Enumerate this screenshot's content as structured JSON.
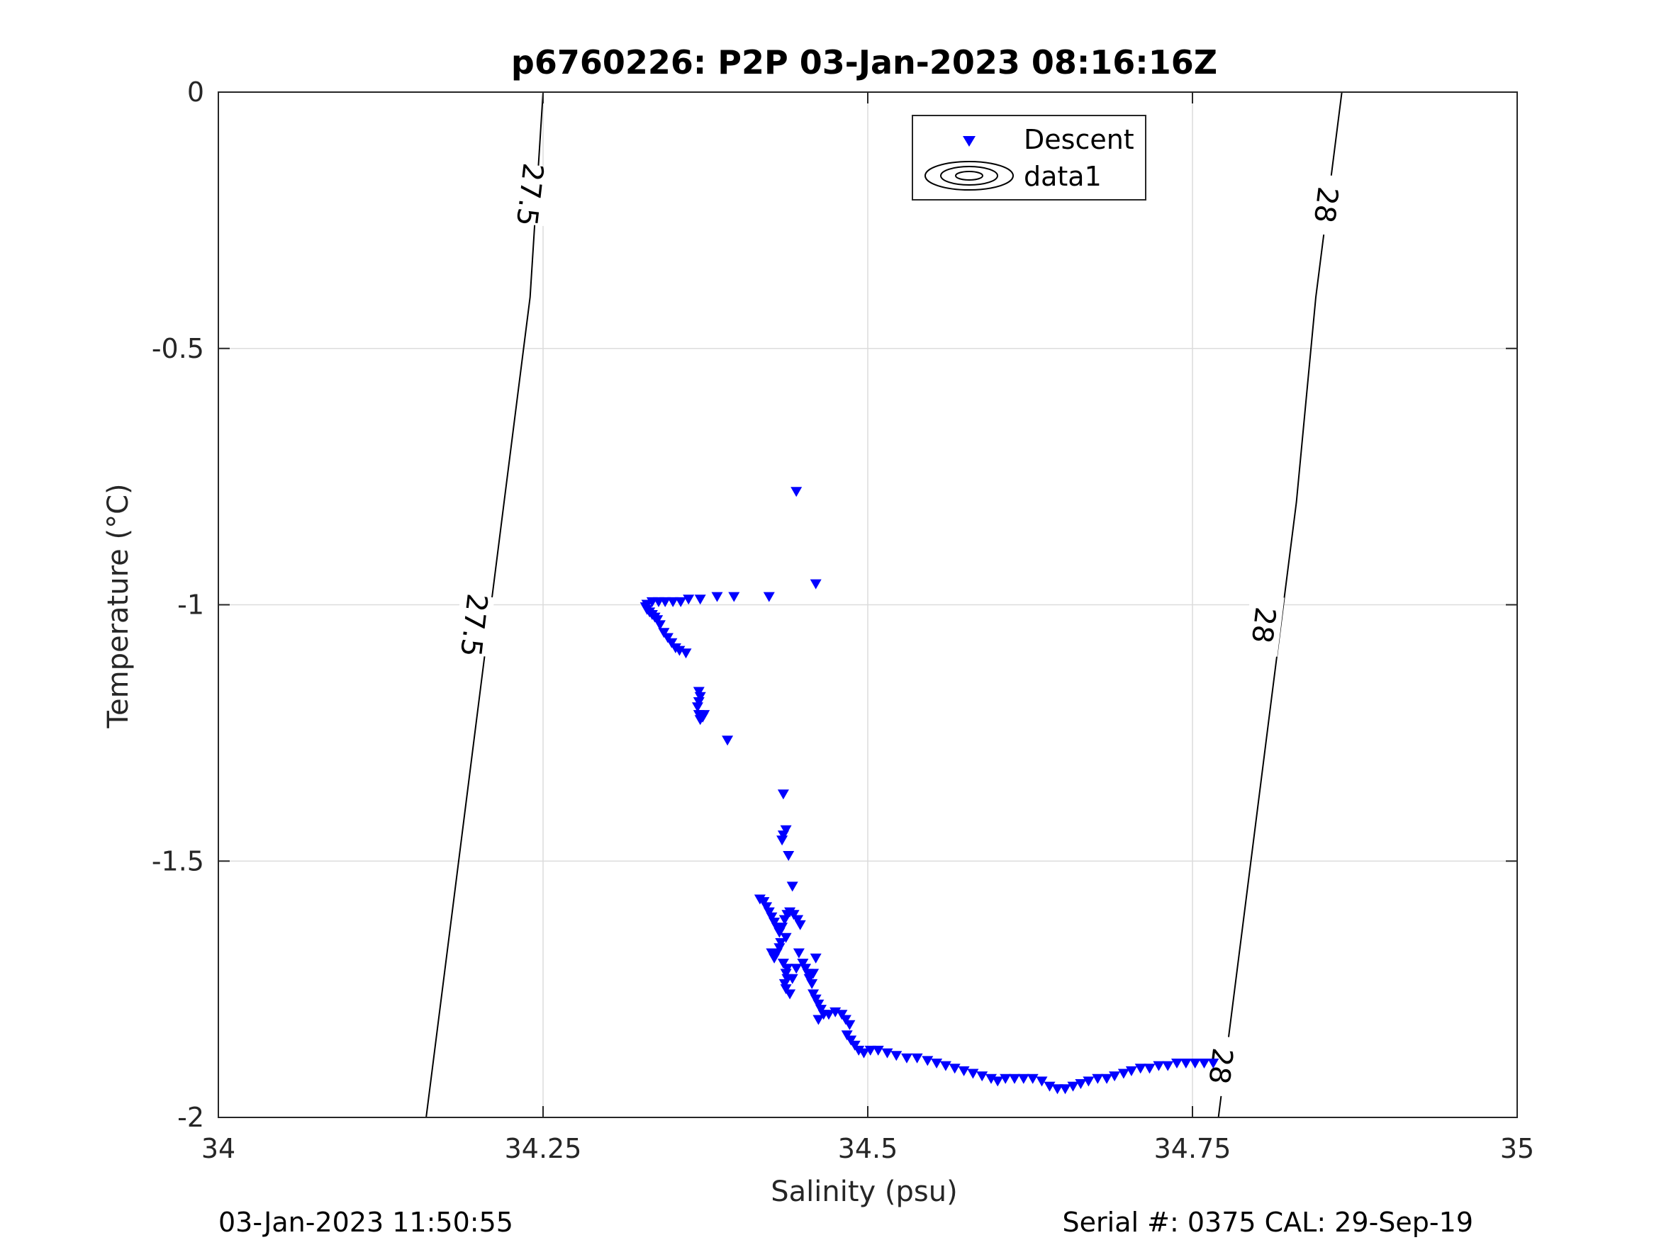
{
  "chart_data": {
    "type": "scatter",
    "title": "p6760226: P2P 03-Jan-2023 08:16:16Z",
    "xlabel": "Salinity (psu)",
    "ylabel": "Temperature (°C)",
    "xlim": [
      34,
      35
    ],
    "ylim": [
      -2,
      0
    ],
    "x_ticks": [
      {
        "value": 34,
        "label": "34"
      },
      {
        "value": 34.25,
        "label": "34.25"
      },
      {
        "value": 34.5,
        "label": "34.5"
      },
      {
        "value": 34.75,
        "label": "34.75"
      },
      {
        "value": 35,
        "label": "35"
      }
    ],
    "y_ticks": [
      {
        "value": 0,
        "label": "0"
      },
      {
        "value": -0.5,
        "label": "-0.5"
      },
      {
        "value": -1,
        "label": "-1"
      },
      {
        "value": -1.5,
        "label": "-1.5"
      },
      {
        "value": -2,
        "label": "-2"
      }
    ],
    "grid": true,
    "legend": {
      "placement": "top-center",
      "entries": [
        {
          "label": "Descent",
          "marker": "triangle-down",
          "color": "#0000ff"
        },
        {
          "label": "data1",
          "marker": "contour",
          "color": "#000000"
        }
      ]
    },
    "contours": [
      {
        "level": "27.5",
        "points": [
          [
            34.16,
            -2
          ],
          [
            34.18,
            -1.6
          ],
          [
            34.2,
            -1.2
          ],
          [
            34.22,
            -0.8
          ],
          [
            34.24,
            -0.4
          ],
          [
            34.25,
            0
          ]
        ],
        "labels": [
          {
            "x": 34.197,
            "y": -1.04
          },
          {
            "x": 34.24,
            "y": -0.2
          }
        ]
      },
      {
        "level": "28",
        "points": [
          [
            34.77,
            -2
          ],
          [
            34.79,
            -1.6
          ],
          [
            34.81,
            -1.2
          ],
          [
            34.83,
            -0.8
          ],
          [
            34.845,
            -0.4
          ],
          [
            34.865,
            0
          ]
        ],
        "labels": [
          {
            "x": 34.772,
            "y": -1.9
          },
          {
            "x": 34.805,
            "y": -1.04
          },
          {
            "x": 34.853,
            "y": -0.22
          }
        ]
      }
    ],
    "series": [
      {
        "name": "Descent",
        "marker": "triangle-down",
        "color": "#0000ff",
        "points": [
          [
            34.445,
            -0.78
          ],
          [
            34.46,
            -0.96
          ],
          [
            34.424,
            -0.985
          ],
          [
            34.397,
            -0.985
          ],
          [
            34.384,
            -0.985
          ],
          [
            34.371,
            -0.99
          ],
          [
            34.362,
            -0.99
          ],
          [
            34.356,
            -0.995
          ],
          [
            34.35,
            -0.995
          ],
          [
            34.344,
            -0.995
          ],
          [
            34.339,
            -0.995
          ],
          [
            34.334,
            -0.995
          ],
          [
            34.33,
            -1.0
          ],
          [
            34.329,
            -1.005
          ],
          [
            34.33,
            -1.01
          ],
          [
            34.332,
            -1.015
          ],
          [
            34.334,
            -1.02
          ],
          [
            34.336,
            -1.025
          ],
          [
            34.338,
            -1.03
          ],
          [
            34.34,
            -1.04
          ],
          [
            34.343,
            -1.055
          ],
          [
            34.346,
            -1.065
          ],
          [
            34.349,
            -1.075
          ],
          [
            34.352,
            -1.085
          ],
          [
            34.355,
            -1.09
          ],
          [
            34.36,
            -1.095
          ],
          [
            34.37,
            -1.17
          ],
          [
            34.371,
            -1.18
          ],
          [
            34.37,
            -1.19
          ],
          [
            34.369,
            -1.2
          ],
          [
            34.37,
            -1.215
          ],
          [
            34.371,
            -1.225
          ],
          [
            34.373,
            -1.22
          ],
          [
            34.374,
            -1.215
          ],
          [
            34.392,
            -1.265
          ],
          [
            34.435,
            -1.37
          ],
          [
            34.437,
            -1.44
          ],
          [
            34.435,
            -1.45
          ],
          [
            34.434,
            -1.46
          ],
          [
            34.439,
            -1.49
          ],
          [
            34.442,
            -1.55
          ],
          [
            34.417,
            -1.575
          ],
          [
            34.42,
            -1.58
          ],
          [
            34.422,
            -1.59
          ],
          [
            34.424,
            -1.6
          ],
          [
            34.426,
            -1.61
          ],
          [
            34.428,
            -1.62
          ],
          [
            34.43,
            -1.63
          ],
          [
            34.432,
            -1.64
          ],
          [
            34.434,
            -1.63
          ],
          [
            34.436,
            -1.615
          ],
          [
            34.438,
            -1.605
          ],
          [
            34.44,
            -1.6
          ],
          [
            34.443,
            -1.605
          ],
          [
            34.446,
            -1.615
          ],
          [
            34.448,
            -1.625
          ],
          [
            34.437,
            -1.65
          ],
          [
            34.433,
            -1.66
          ],
          [
            34.432,
            -1.67
          ],
          [
            34.43,
            -1.68
          ],
          [
            34.428,
            -1.69
          ],
          [
            34.426,
            -1.68
          ],
          [
            34.435,
            -1.7
          ],
          [
            34.438,
            -1.71
          ],
          [
            34.437,
            -1.72
          ],
          [
            34.438,
            -1.73
          ],
          [
            34.436,
            -1.74
          ],
          [
            34.437,
            -1.75
          ],
          [
            34.44,
            -1.76
          ],
          [
            34.442,
            -1.73
          ],
          [
            34.445,
            -1.71
          ],
          [
            34.447,
            -1.68
          ],
          [
            34.45,
            -1.7
          ],
          [
            34.452,
            -1.71
          ],
          [
            34.454,
            -1.72
          ],
          [
            34.455,
            -1.73
          ],
          [
            34.457,
            -1.74
          ],
          [
            34.458,
            -1.72
          ],
          [
            34.46,
            -1.69
          ],
          [
            34.458,
            -1.76
          ],
          [
            34.46,
            -1.77
          ],
          [
            34.462,
            -1.78
          ],
          [
            34.464,
            -1.79
          ],
          [
            34.466,
            -1.8
          ],
          [
            34.462,
            -1.81
          ],
          [
            34.47,
            -1.8
          ],
          [
            34.475,
            -1.795
          ],
          [
            34.48,
            -1.8
          ],
          [
            34.483,
            -1.81
          ],
          [
            34.486,
            -1.82
          ],
          [
            34.484,
            -1.84
          ],
          [
            34.487,
            -1.85
          ],
          [
            34.49,
            -1.86
          ],
          [
            34.493,
            -1.87
          ],
          [
            34.497,
            -1.875
          ],
          [
            34.502,
            -1.87
          ],
          [
            34.508,
            -1.87
          ],
          [
            34.515,
            -1.875
          ],
          [
            34.522,
            -1.88
          ],
          [
            34.53,
            -1.885
          ],
          [
            34.538,
            -1.885
          ],
          [
            34.546,
            -1.89
          ],
          [
            34.553,
            -1.895
          ],
          [
            34.56,
            -1.9
          ],
          [
            34.567,
            -1.905
          ],
          [
            34.574,
            -1.91
          ],
          [
            34.581,
            -1.915
          ],
          [
            34.588,
            -1.92
          ],
          [
            34.595,
            -1.925
          ],
          [
            34.6,
            -1.93
          ],
          [
            34.606,
            -1.925
          ],
          [
            34.613,
            -1.925
          ],
          [
            34.62,
            -1.925
          ],
          [
            34.627,
            -1.925
          ],
          [
            34.634,
            -1.93
          ],
          [
            34.64,
            -1.94
          ],
          [
            34.646,
            -1.945
          ],
          [
            34.652,
            -1.945
          ],
          [
            34.658,
            -1.94
          ],
          [
            34.664,
            -1.935
          ],
          [
            34.67,
            -1.93
          ],
          [
            34.677,
            -1.925
          ],
          [
            34.684,
            -1.925
          ],
          [
            34.69,
            -1.92
          ],
          [
            34.697,
            -1.915
          ],
          [
            34.703,
            -1.91
          ],
          [
            34.71,
            -1.905
          ],
          [
            34.717,
            -1.905
          ],
          [
            34.724,
            -1.9
          ],
          [
            34.731,
            -1.9
          ],
          [
            34.738,
            -1.895
          ],
          [
            34.745,
            -1.895
          ],
          [
            34.752,
            -1.895
          ],
          [
            34.759,
            -1.895
          ],
          [
            34.766,
            -1.895
          ]
        ]
      }
    ]
  },
  "footer": {
    "left": "03-Jan-2023 11:50:55",
    "right": "Serial #: 0375  CAL: 29-Sep-19"
  }
}
